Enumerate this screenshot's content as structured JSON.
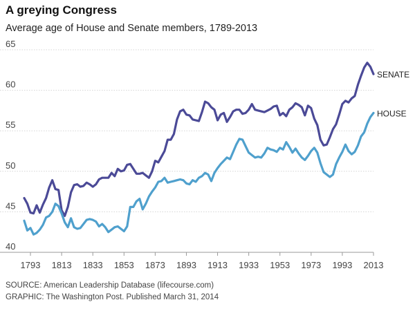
{
  "header": {
    "title": "A greying Congress",
    "subtitle": "Average age of House and Senate members, 1789-2013"
  },
  "footer": {
    "source": "SOURCE: American Leadership Database (lifecourse.com)",
    "graphic": "GRAPHIC: The Washington Post. Published March 31, 2014"
  },
  "chart_data": {
    "type": "line",
    "title": "A greying Congress",
    "subtitle": "Average age of House and Senate members, 1789-2013",
    "xlabel": "",
    "ylabel": "",
    "xlim": [
      1789,
      2013
    ],
    "ylim": [
      40,
      65
    ],
    "x_ticks": [
      1793,
      1813,
      1833,
      1853,
      1873,
      1893,
      1913,
      1933,
      1953,
      1973,
      1993,
      2013
    ],
    "y_ticks": [
      40,
      45,
      50,
      55,
      60,
      65
    ],
    "grid": true,
    "legend": "direct labels at right end of lines",
    "x": [
      1789,
      1791,
      1793,
      1795,
      1797,
      1799,
      1801,
      1803,
      1805,
      1807,
      1809,
      1811,
      1813,
      1815,
      1817,
      1819,
      1821,
      1823,
      1825,
      1827,
      1829,
      1831,
      1833,
      1835,
      1837,
      1839,
      1841,
      1843,
      1845,
      1847,
      1849,
      1851,
      1853,
      1855,
      1857,
      1859,
      1861,
      1863,
      1865,
      1867,
      1869,
      1871,
      1873,
      1875,
      1877,
      1879,
      1881,
      1883,
      1885,
      1887,
      1889,
      1891,
      1893,
      1895,
      1897,
      1899,
      1901,
      1903,
      1905,
      1907,
      1909,
      1911,
      1913,
      1915,
      1917,
      1919,
      1921,
      1923,
      1925,
      1927,
      1929,
      1931,
      1933,
      1935,
      1937,
      1939,
      1941,
      1943,
      1945,
      1947,
      1949,
      1951,
      1953,
      1955,
      1957,
      1959,
      1961,
      1963,
      1965,
      1967,
      1969,
      1971,
      1973,
      1975,
      1977,
      1979,
      1981,
      1983,
      1985,
      1987,
      1989,
      1991,
      1993,
      1995,
      1997,
      1999,
      2001,
      2003,
      2005,
      2007,
      2009,
      2011,
      2013
    ],
    "series": [
      {
        "name": "SENATE",
        "color": "#4b4a97",
        "values": [
          46.7,
          46.0,
          44.9,
          44.8,
          45.8,
          44.9,
          45.9,
          46.7,
          48.0,
          48.9,
          47.8,
          47.7,
          45.2,
          44.5,
          45.6,
          47.4,
          48.3,
          48.4,
          48.1,
          48.2,
          48.6,
          48.4,
          48.1,
          48.4,
          49.0,
          49.2,
          49.2,
          49.2,
          49.8,
          49.4,
          50.3,
          50.0,
          50.1,
          50.8,
          50.9,
          50.3,
          49.7,
          49.7,
          49.8,
          49.5,
          49.2,
          50.0,
          51.3,
          51.1,
          51.8,
          52.5,
          53.9,
          53.9,
          54.6,
          56.4,
          57.4,
          57.6,
          57.0,
          56.9,
          56.4,
          56.3,
          56.2,
          57.3,
          58.6,
          58.4,
          57.9,
          57.6,
          56.3,
          57.0,
          57.2,
          56.1,
          56.7,
          57.4,
          57.6,
          57.6,
          57.1,
          57.2,
          57.6,
          58.3,
          57.6,
          57.5,
          57.4,
          57.3,
          57.5,
          57.7,
          58.0,
          58.1,
          56.9,
          57.2,
          56.8,
          57.6,
          57.9,
          58.4,
          58.2,
          57.9,
          56.9,
          58.1,
          57.8,
          56.5,
          55.7,
          53.9,
          53.2,
          53.3,
          54.2,
          55.2,
          55.8,
          57.0,
          58.3,
          58.7,
          58.5,
          59.0,
          59.3,
          60.7,
          61.8,
          62.8,
          63.4,
          62.9,
          62.0
        ]
      },
      {
        "name": "HOUSE",
        "color": "#4fa0cd",
        "values": [
          43.9,
          42.7,
          43.0,
          42.2,
          42.4,
          42.8,
          43.4,
          44.3,
          44.5,
          45.0,
          46.0,
          45.7,
          44.8,
          43.7,
          43.1,
          44.2,
          43.1,
          42.9,
          43.0,
          43.5,
          44.0,
          44.1,
          44.0,
          43.8,
          43.2,
          43.5,
          43.1,
          42.5,
          42.8,
          43.1,
          43.2,
          42.9,
          42.6,
          43.2,
          45.6,
          45.6,
          46.3,
          46.6,
          45.3,
          46.0,
          46.9,
          47.5,
          48.0,
          48.7,
          48.8,
          49.2,
          48.6,
          48.7,
          48.8,
          48.9,
          49.0,
          48.9,
          48.5,
          48.4,
          48.9,
          48.7,
          49.2,
          49.4,
          49.8,
          49.6,
          48.8,
          49.8,
          50.4,
          50.9,
          51.3,
          51.7,
          51.5,
          52.4,
          53.3,
          54.0,
          53.9,
          53.1,
          52.3,
          52.0,
          51.7,
          51.8,
          51.7,
          52.2,
          52.9,
          52.7,
          52.6,
          52.4,
          52.9,
          52.7,
          53.6,
          53.0,
          52.3,
          52.8,
          52.2,
          51.7,
          51.4,
          51.9,
          52.5,
          52.9,
          52.3,
          51.0,
          49.9,
          49.6,
          49.3,
          49.6,
          50.9,
          51.7,
          52.4,
          53.3,
          52.5,
          52.1,
          52.4,
          53.2,
          54.3,
          54.8,
          55.9,
          56.7,
          57.2
        ]
      }
    ]
  }
}
